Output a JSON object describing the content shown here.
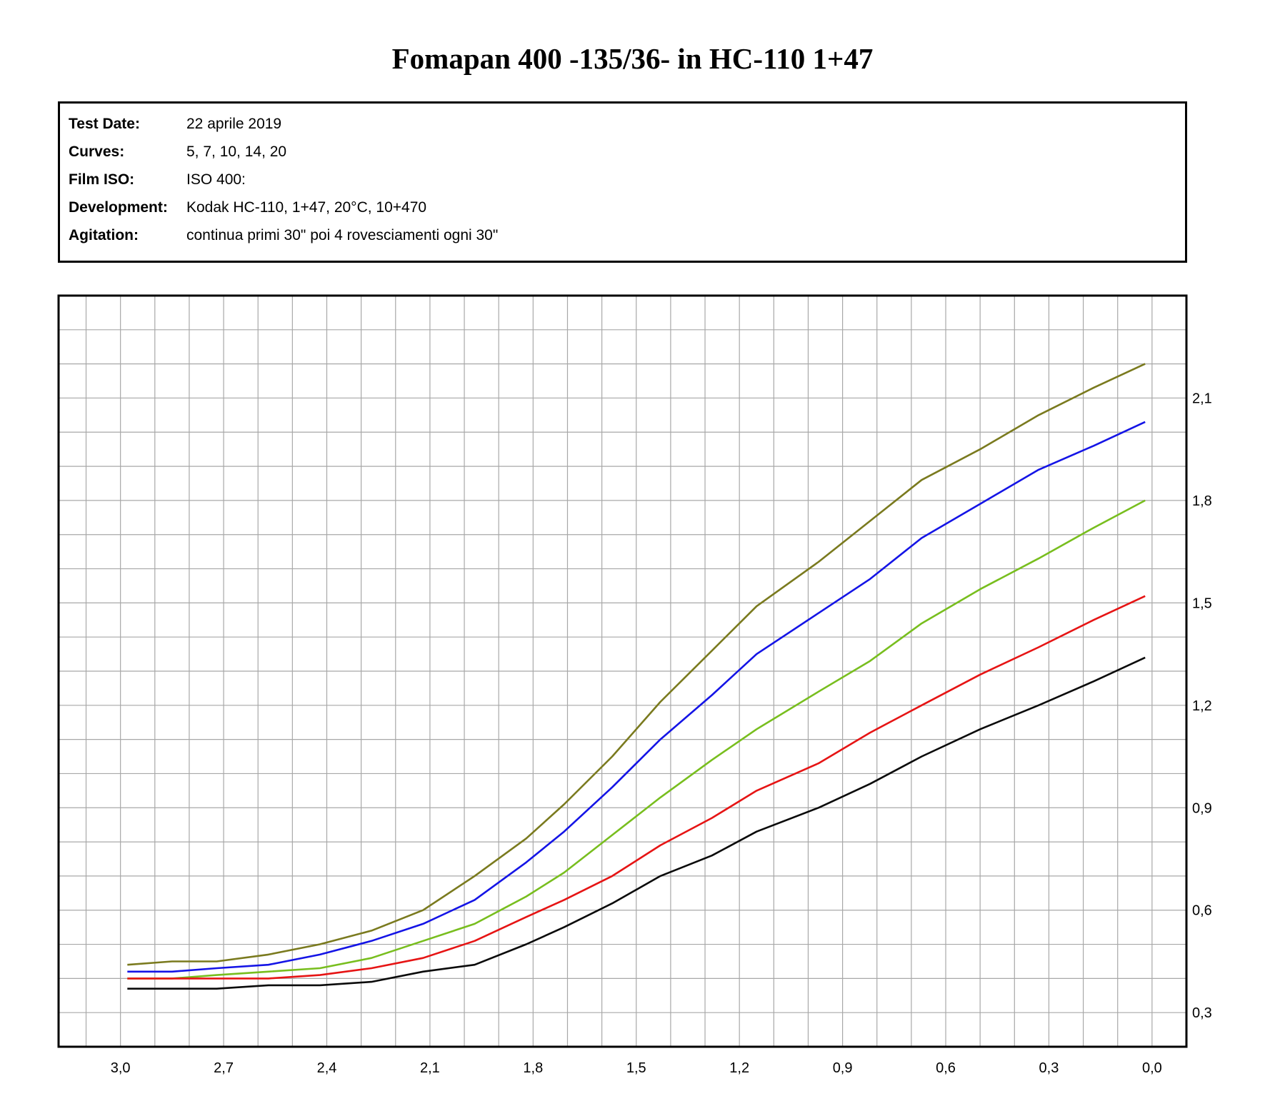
{
  "title": "Fomapan 400 -135/36- in HC-110 1+47",
  "info": [
    {
      "label": "Test Date:",
      "value": "22 aprile 2019"
    },
    {
      "label": "Curves:",
      "value": "5, 7, 10, 14, 20"
    },
    {
      "label": "Film ISO:",
      "value": "ISO 400:"
    },
    {
      "label": "Development:",
      "value": "Kodak HC-110, 1+47, 20°C, 10+470"
    },
    {
      "label": "Agitation:",
      "value": "continua primi 30\" poi 4 rovesciamenti ogni 30\""
    }
  ],
  "chart_data": {
    "type": "line",
    "title": "",
    "xlabel": "",
    "ylabel": "",
    "xlim": [
      3.18,
      -0.1
    ],
    "ylim": [
      0.2,
      2.4
    ],
    "x_reversed": true,
    "grid": true,
    "grid_step_x": 0.1,
    "grid_step_y": 0.1,
    "x_ticks": [
      {
        "value": 3.0,
        "label": "3,0"
      },
      {
        "value": 2.7,
        "label": "2,7"
      },
      {
        "value": 2.4,
        "label": "2,4"
      },
      {
        "value": 2.1,
        "label": "2,1"
      },
      {
        "value": 1.8,
        "label": "1,8"
      },
      {
        "value": 1.5,
        "label": "1,5"
      },
      {
        "value": 1.2,
        "label": "1,2"
      },
      {
        "value": 0.9,
        "label": "0,9"
      },
      {
        "value": 0.6,
        "label": "0,6"
      },
      {
        "value": 0.3,
        "label": "0,3"
      },
      {
        "value": 0.0,
        "label": "0,0"
      }
    ],
    "y_ticks": [
      {
        "value": 0.3,
        "label": "0,3"
      },
      {
        "value": 0.6,
        "label": "0,6"
      },
      {
        "value": 0.9,
        "label": "0,9"
      },
      {
        "value": 1.2,
        "label": "1,2"
      },
      {
        "value": 1.5,
        "label": "1,5"
      },
      {
        "value": 1.8,
        "label": "1,8"
      },
      {
        "value": 2.1,
        "label": "2,1"
      }
    ],
    "y_axis_side": "right",
    "series": [
      {
        "color": "#7a7a1e",
        "points": [
          [
            2.98,
            0.44
          ],
          [
            2.85,
            0.45
          ],
          [
            2.72,
            0.45
          ],
          [
            2.57,
            0.47
          ],
          [
            2.42,
            0.5
          ],
          [
            2.27,
            0.54
          ],
          [
            2.12,
            0.6
          ],
          [
            1.97,
            0.7
          ],
          [
            1.82,
            0.81
          ],
          [
            1.71,
            0.91
          ],
          [
            1.57,
            1.05
          ],
          [
            1.43,
            1.21
          ],
          [
            1.28,
            1.36
          ],
          [
            1.15,
            1.49
          ],
          [
            0.97,
            1.62
          ],
          [
            0.82,
            1.74
          ],
          [
            0.67,
            1.86
          ],
          [
            0.5,
            1.95
          ],
          [
            0.33,
            2.05
          ],
          [
            0.17,
            2.13
          ],
          [
            0.02,
            2.2
          ]
        ]
      },
      {
        "color": "#1414e6",
        "points": [
          [
            2.98,
            0.42
          ],
          [
            2.85,
            0.42
          ],
          [
            2.72,
            0.43
          ],
          [
            2.57,
            0.44
          ],
          [
            2.42,
            0.47
          ],
          [
            2.27,
            0.51
          ],
          [
            2.12,
            0.56
          ],
          [
            1.97,
            0.63
          ],
          [
            1.82,
            0.74
          ],
          [
            1.71,
            0.83
          ],
          [
            1.57,
            0.96
          ],
          [
            1.43,
            1.1
          ],
          [
            1.28,
            1.23
          ],
          [
            1.15,
            1.35
          ],
          [
            0.97,
            1.47
          ],
          [
            0.82,
            1.57
          ],
          [
            0.67,
            1.69
          ],
          [
            0.5,
            1.79
          ],
          [
            0.33,
            1.89
          ],
          [
            0.17,
            1.96
          ],
          [
            0.02,
            2.03
          ]
        ]
      },
      {
        "color": "#78be1e",
        "points": [
          [
            2.98,
            0.4
          ],
          [
            2.85,
            0.4
          ],
          [
            2.72,
            0.41
          ],
          [
            2.57,
            0.42
          ],
          [
            2.42,
            0.43
          ],
          [
            2.27,
            0.46
          ],
          [
            2.12,
            0.51
          ],
          [
            1.97,
            0.56
          ],
          [
            1.82,
            0.64
          ],
          [
            1.71,
            0.71
          ],
          [
            1.57,
            0.82
          ],
          [
            1.43,
            0.93
          ],
          [
            1.28,
            1.04
          ],
          [
            1.15,
            1.13
          ],
          [
            0.97,
            1.24
          ],
          [
            0.82,
            1.33
          ],
          [
            0.67,
            1.44
          ],
          [
            0.5,
            1.54
          ],
          [
            0.33,
            1.63
          ],
          [
            0.17,
            1.72
          ],
          [
            0.02,
            1.8
          ]
        ]
      },
      {
        "color": "#e61414",
        "points": [
          [
            2.98,
            0.4
          ],
          [
            2.85,
            0.4
          ],
          [
            2.72,
            0.4
          ],
          [
            2.57,
            0.4
          ],
          [
            2.42,
            0.41
          ],
          [
            2.27,
            0.43
          ],
          [
            2.12,
            0.46
          ],
          [
            1.97,
            0.51
          ],
          [
            1.82,
            0.58
          ],
          [
            1.71,
            0.63
          ],
          [
            1.57,
            0.7
          ],
          [
            1.43,
            0.79
          ],
          [
            1.28,
            0.87
          ],
          [
            1.15,
            0.95
          ],
          [
            0.97,
            1.03
          ],
          [
            0.82,
            1.12
          ],
          [
            0.67,
            1.2
          ],
          [
            0.5,
            1.29
          ],
          [
            0.33,
            1.37
          ],
          [
            0.17,
            1.45
          ],
          [
            0.02,
            1.52
          ]
        ]
      },
      {
        "color": "#0a0a0a",
        "points": [
          [
            2.98,
            0.37
          ],
          [
            2.85,
            0.37
          ],
          [
            2.72,
            0.37
          ],
          [
            2.57,
            0.38
          ],
          [
            2.42,
            0.38
          ],
          [
            2.27,
            0.39
          ],
          [
            2.12,
            0.42
          ],
          [
            1.97,
            0.44
          ],
          [
            1.82,
            0.5
          ],
          [
            1.71,
            0.55
          ],
          [
            1.57,
            0.62
          ],
          [
            1.43,
            0.7
          ],
          [
            1.28,
            0.76
          ],
          [
            1.15,
            0.83
          ],
          [
            0.97,
            0.9
          ],
          [
            0.82,
            0.97
          ],
          [
            0.67,
            1.05
          ],
          [
            0.5,
            1.13
          ],
          [
            0.33,
            1.2
          ],
          [
            0.17,
            1.27
          ],
          [
            0.02,
            1.34
          ]
        ]
      }
    ]
  }
}
